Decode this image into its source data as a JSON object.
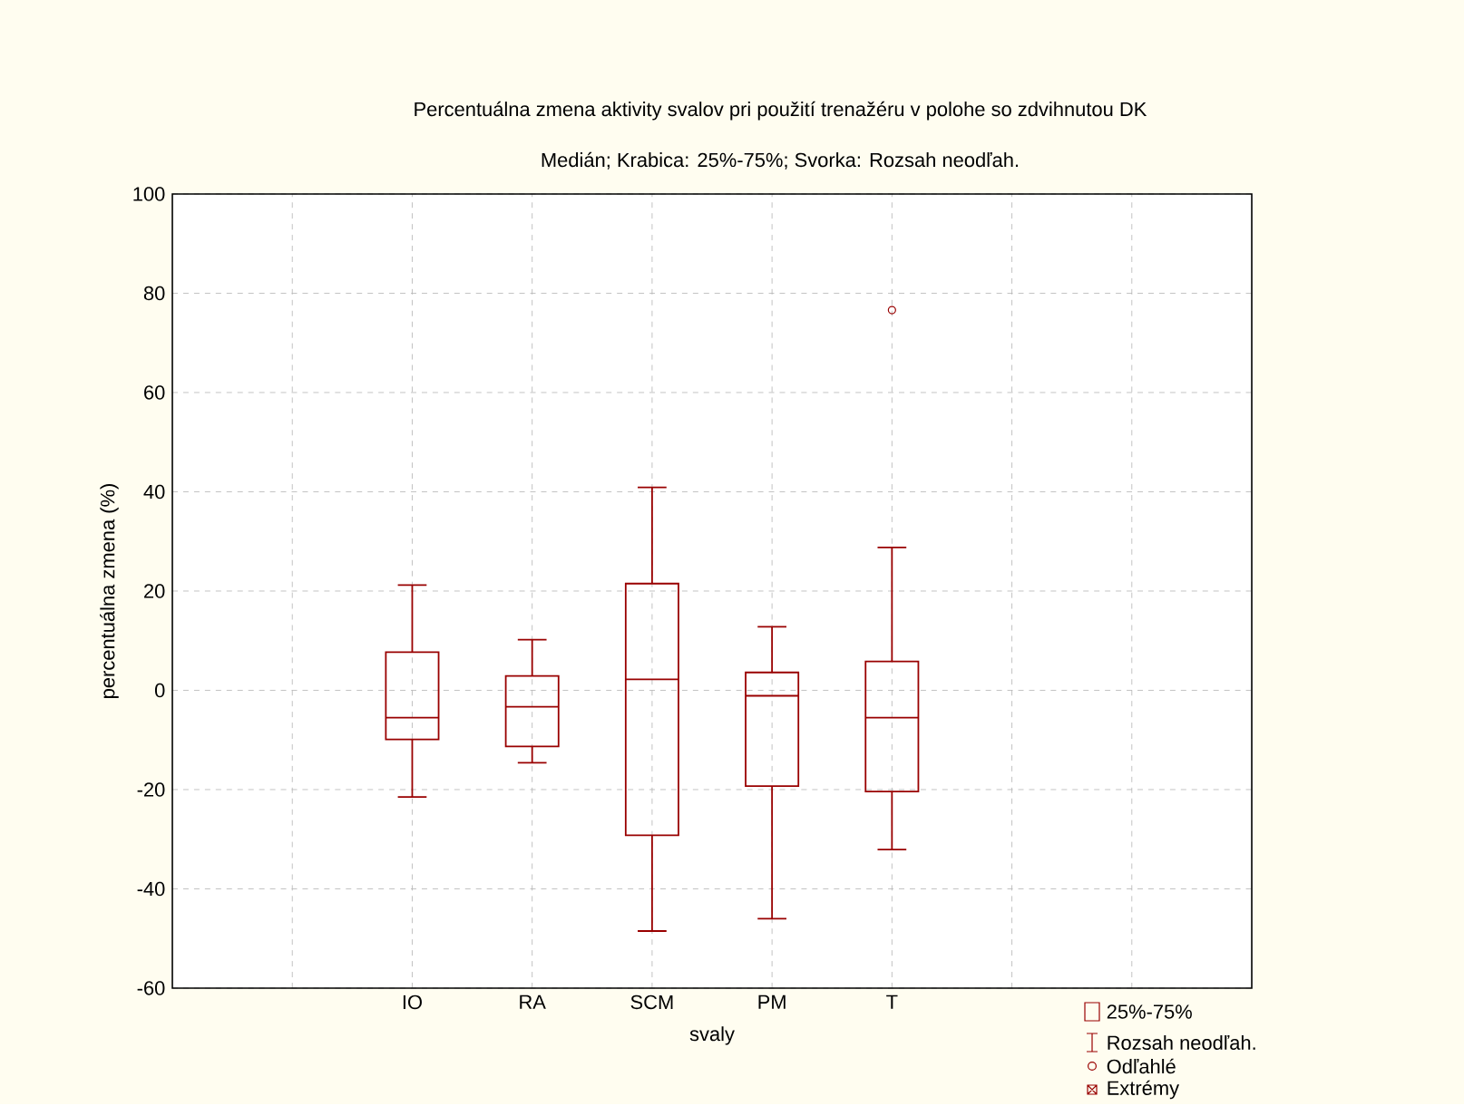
{
  "chart_data": {
    "type": "box",
    "title": "Percentuálna zmena aktivity svalov pri použití trenažéru v polohe so zdvihnutou DK",
    "subtitle": "Medián; Krabica: 25%-75%; Svorka: Rozsah neodľah.",
    "xlabel": "svaly",
    "ylabel": "percentuálna zmena (%)",
    "categories": [
      null,
      "IO",
      "RA",
      "SCM",
      "PM",
      "T",
      null,
      null
    ],
    "color": "#990000",
    "boxes": [
      null,
      {
        "low": -21.5,
        "q1": -9.9,
        "median": -5.5,
        "q3": 7.7,
        "high": 21.2
      },
      {
        "low": -14.6,
        "q1": -11.3,
        "median": -3.3,
        "q3": 2.9,
        "high": 10.2
      },
      {
        "low": -48.5,
        "q1": -29.2,
        "median": 2.2,
        "q3": 21.5,
        "high": 40.9
      },
      {
        "low": -46,
        "q1": -19.3,
        "median": -1.1,
        "q3": 3.6,
        "high": 12.8
      },
      {
        "low": -32.1,
        "q1": -20.4,
        "median": -5.5,
        "q3": 5.8,
        "high": 28.8,
        "outliers": [
          76.6
        ]
      },
      null,
      null
    ],
    "ylim": [
      -60,
      100
    ],
    "yticks": [
      -60,
      -40,
      -20,
      0,
      20,
      40,
      60,
      80,
      100
    ],
    "grid": true,
    "marker": "circle",
    "annotations": [
      "25%-75%",
      "Rozsah neodľah.",
      "Odľahlé",
      "Extrémy"
    ]
  }
}
